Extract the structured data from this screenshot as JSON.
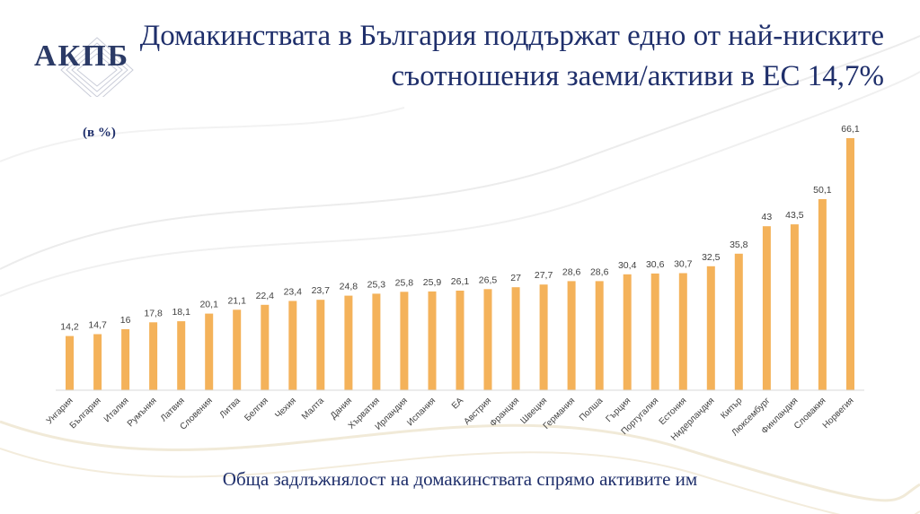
{
  "slide": {
    "logo_text": "АКПБ",
    "title": "Домакинствата в България поддържат едно от най-ниските съотношения заеми/активи в ЕС 14,7%",
    "unit_label": "(в %)",
    "footer": "Обща задлъжнялост на домакинствата спрямо активите им"
  },
  "colors": {
    "bar": "#f4b25a",
    "title": "#1f2f6b",
    "axis": "#d9d9d9"
  },
  "chart_data": {
    "type": "bar",
    "categories": [
      "Унгария",
      "България",
      "Италия",
      "Румъния",
      "Латвия",
      "Словения",
      "Литва",
      "Белгия",
      "Чехия",
      "Малта",
      "Дания",
      "Хърватия",
      "Ирландия",
      "Испания",
      "ЕА",
      "Австрия",
      "Франция",
      "Швеция",
      "Германия",
      "Полша",
      "Гърция",
      "Португалия",
      "Естония",
      "Нидерландия",
      "Кипър",
      "Люксембург",
      "Финландия",
      "Словакия",
      "Норвегия"
    ],
    "values": [
      14.2,
      14.7,
      16,
      17.8,
      18.1,
      20.1,
      21.1,
      22.4,
      23.4,
      23.7,
      24.8,
      25.3,
      25.8,
      25.9,
      26.1,
      26.5,
      27,
      27.7,
      28.6,
      28.6,
      30.4,
      30.6,
      30.7,
      32.5,
      35.8,
      43,
      43.5,
      50.1,
      66.1
    ],
    "value_labels": [
      "14,2",
      "14,7",
      "16",
      "17,8",
      "18,1",
      "20,1",
      "21,1",
      "22,4",
      "23,4",
      "23,7",
      "24,8",
      "25,3",
      "25,8",
      "25,9",
      "26,1",
      "26,5",
      "27",
      "27,7",
      "28,6",
      "28,6",
      "30,4",
      "30,6",
      "30,7",
      "32,5",
      "35,8",
      "43",
      "43,5",
      "50,1",
      "66,1"
    ],
    "ylim": [
      0,
      66.1
    ],
    "grid": false,
    "legend": "none"
  }
}
